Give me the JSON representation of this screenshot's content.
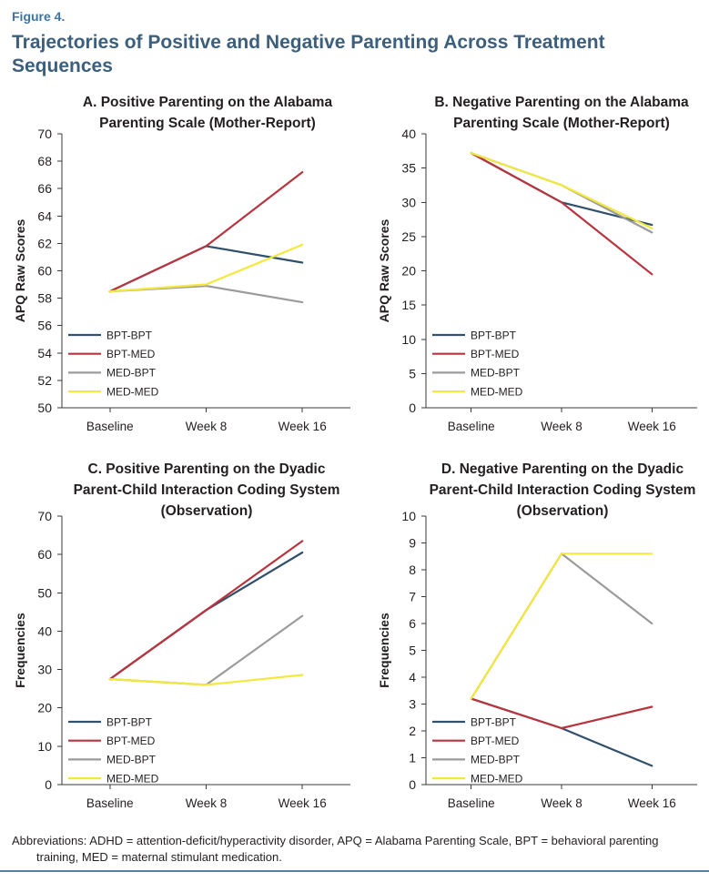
{
  "figure_label": "Figure 4.",
  "title": "Trajectories of Positive and Negative Parenting Across Treatment\nSequences",
  "footnote": "Abbreviations: ADHD = attention-deficit/hyperactivity disorder, APQ = Alabama Parenting Scale, BPT = behavioral parenting\ntraining, MED = maternal stimulant medication.",
  "colors": {
    "figure_label": "#3f74a0",
    "title": "#3b5f7c",
    "rule": "#5b7f9b"
  },
  "chart_data": [
    {
      "type": "line",
      "title": "A. Positive Parenting on the Alabama\nParenting Scale (Mother-Report)",
      "ylabel": "APQ Raw Scores",
      "categories": [
        "Baseline",
        "Week 8",
        "Week 16"
      ],
      "ylim": [
        50,
        70
      ],
      "y_ticks": [
        50,
        52,
        54,
        56,
        58,
        60,
        62,
        64,
        66,
        68,
        70
      ],
      "grid": false,
      "legend": "lower-left",
      "series": [
        {
          "name": "BPT-BPT",
          "color": "#30506c",
          "values": [
            58.5,
            61.8,
            60.6
          ]
        },
        {
          "name": "BPT-MED",
          "color": "#b8343e",
          "values": [
            58.5,
            61.8,
            67.2
          ]
        },
        {
          "name": "MED-BPT",
          "color": "#9b9b9b",
          "values": [
            58.5,
            58.9,
            57.7
          ]
        },
        {
          "name": "MED-MED",
          "color": "#f3e83b",
          "values": [
            58.5,
            59.0,
            61.9
          ]
        }
      ]
    },
    {
      "type": "line",
      "title": "B. Negative Parenting on the Alabama\nParenting Scale (Mother-Report)",
      "ylabel": "APQ Raw Scores",
      "categories": [
        "Baseline",
        "Week 8",
        "Week 16"
      ],
      "ylim": [
        0,
        40
      ],
      "y_ticks": [
        0,
        5,
        10,
        15,
        20,
        25,
        30,
        35,
        40
      ],
      "grid": false,
      "legend": "lower-left",
      "series": [
        {
          "name": "BPT-BPT",
          "color": "#30506c",
          "values": [
            37.2,
            30.0,
            26.7
          ]
        },
        {
          "name": "BPT-MED",
          "color": "#b8343e",
          "values": [
            37.2,
            30.0,
            19.5
          ]
        },
        {
          "name": "MED-BPT",
          "color": "#9b9b9b",
          "values": [
            37.2,
            32.5,
            25.6
          ]
        },
        {
          "name": "MED-MED",
          "color": "#f3e83b",
          "values": [
            37.2,
            32.5,
            26.2
          ]
        }
      ]
    },
    {
      "type": "line",
      "title": "C. Positive Parenting on the Dyadic\nParent-Child Interaction Coding System\n(Observation)",
      "ylabel": "Frequencies",
      "categories": [
        "Baseline",
        "Week 8",
        "Week 16"
      ],
      "ylim": [
        0,
        70
      ],
      "y_ticks": [
        0,
        10,
        20,
        30,
        40,
        50,
        60,
        70
      ],
      "grid": false,
      "legend": "lower-left",
      "series": [
        {
          "name": "BPT-BPT",
          "color": "#30506c",
          "values": [
            27.5,
            45.5,
            60.5
          ]
        },
        {
          "name": "BPT-MED",
          "color": "#b8343e",
          "values": [
            27.5,
            45.5,
            63.5
          ]
        },
        {
          "name": "MED-BPT",
          "color": "#9b9b9b",
          "values": [
            27.5,
            26.0,
            44.0
          ]
        },
        {
          "name": "MED-MED",
          "color": "#f3e83b",
          "values": [
            27.5,
            26.0,
            28.6
          ]
        }
      ]
    },
    {
      "type": "line",
      "title": "D. Negative Parenting on the Dyadic\nParent-Child Interaction Coding System\n(Observation)",
      "ylabel": "Frequencies",
      "categories": [
        "Baseline",
        "Week 8",
        "Week 16"
      ],
      "ylim": [
        0,
        10
      ],
      "y_ticks": [
        0,
        1,
        2,
        3,
        4,
        5,
        6,
        7,
        8,
        9,
        10
      ],
      "grid": false,
      "legend": "lower-left",
      "series": [
        {
          "name": "BPT-BPT",
          "color": "#30506c",
          "values": [
            3.2,
            2.1,
            0.7
          ]
        },
        {
          "name": "BPT-MED",
          "color": "#b8343e",
          "values": [
            3.2,
            2.1,
            2.9
          ]
        },
        {
          "name": "MED-BPT",
          "color": "#9b9b9b",
          "values": [
            3.2,
            8.6,
            6.0
          ]
        },
        {
          "name": "MED-MED",
          "color": "#f3e83b",
          "values": [
            3.2,
            8.6,
            8.6
          ]
        }
      ]
    }
  ]
}
